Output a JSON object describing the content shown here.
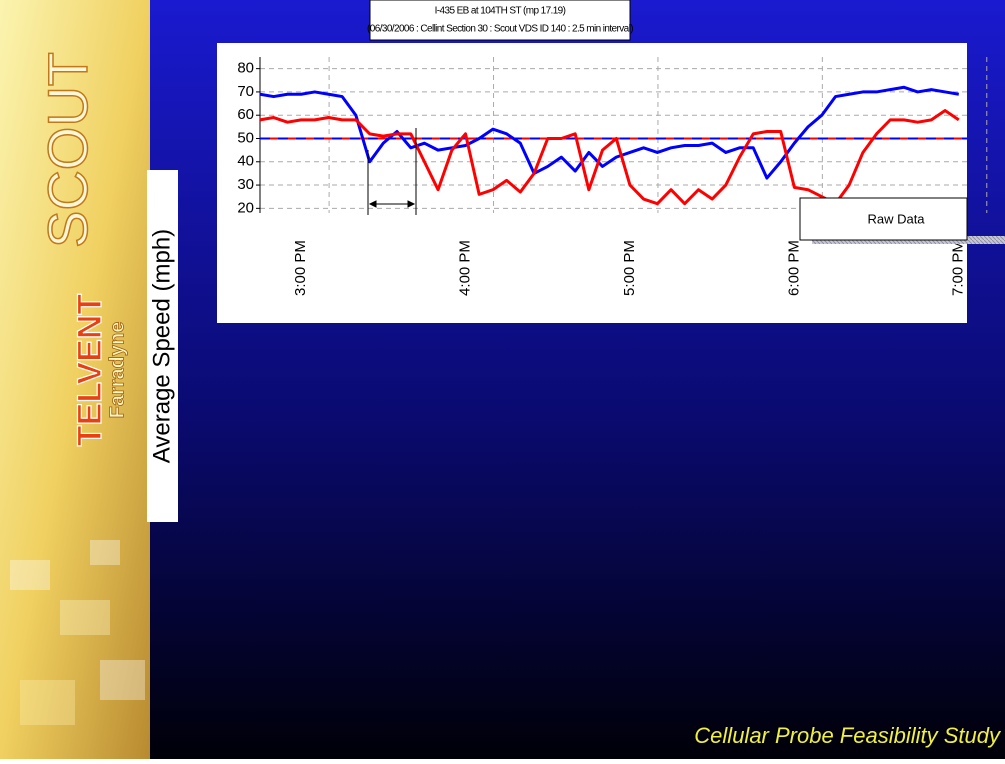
{
  "slide": {
    "branding": {
      "logo": "SCOUT",
      "company": "TELVENT",
      "division": "Farradyne"
    },
    "footer": "Cellular Probe Feasibility Study"
  },
  "chart_data": {
    "type": "line",
    "title": "I-435 EB at 104TH ST (mp 17.19)",
    "subtitle": "(06/30/2006 : Cellint Section 30 : Scout VDS ID 140 : 2.5 min interval)",
    "y_label": "Average Speed (mph)",
    "annotation": "Raw Data",
    "x": [
      14.75,
      14.833,
      14.917,
      15,
      15.083,
      15.167,
      15.25,
      15.333,
      15.417,
      15.5,
      15.583,
      15.667,
      15.75,
      15.833,
      15.917,
      16,
      16.083,
      16.167,
      16.25,
      16.333,
      16.417,
      16.5,
      16.583,
      16.667,
      16.75,
      16.833,
      16.917,
      17,
      17.083,
      17.167,
      17.25,
      17.333,
      17.417,
      17.5,
      17.583,
      17.667,
      17.75,
      17.833,
      17.917,
      18,
      18.083,
      18.167,
      18.25,
      18.333,
      18.417,
      18.5,
      18.583,
      18.667,
      18.75,
      18.833,
      18.917,
      19
    ],
    "series": [
      {
        "color": "#0000ff",
        "values": [
          69,
          68,
          69,
          69,
          70,
          69,
          68,
          60,
          40,
          48,
          53,
          46,
          48,
          45,
          46,
          47,
          50,
          54,
          52,
          48,
          35,
          38,
          42,
          36,
          44,
          38,
          42,
          44,
          46,
          44,
          46,
          47,
          47,
          48,
          44,
          46,
          46,
          33,
          40,
          48,
          55,
          60,
          68,
          69,
          70,
          70,
          71,
          72,
          70,
          71,
          70,
          69
        ]
      },
      {
        "color": "#ff0000",
        "values": [
          58,
          59,
          57,
          58,
          58,
          59,
          58,
          58,
          52,
          51,
          52,
          52,
          40,
          28,
          45,
          52,
          26,
          28,
          32,
          27,
          35,
          50,
          50,
          52,
          28,
          45,
          50,
          30,
          24,
          22,
          28,
          22,
          28,
          24,
          30,
          42,
          52,
          53,
          53,
          29,
          28,
          25,
          22,
          30,
          44,
          52,
          58,
          58,
          57,
          58,
          62,
          58
        ]
      }
    ],
    "reference_lines": [
      {
        "value": 50,
        "color": "#ff0000"
      },
      {
        "value": 50,
        "color": "#0000ff"
      }
    ],
    "xlim": [
      14.75,
      19.05
    ],
    "xticks": [
      {
        "value": 15,
        "label": "3:00 PM"
      },
      {
        "value": 16,
        "label": "4:00 PM"
      },
      {
        "value": 17,
        "label": "5:00 PM"
      },
      {
        "value": 18,
        "label": "6:00 PM"
      },
      {
        "value": 19,
        "label": "7:00 PM"
      }
    ],
    "ylim": [
      18,
      85
    ],
    "yticks": [
      20,
      30,
      40,
      50,
      60,
      70,
      80
    ],
    "grid": true
  }
}
